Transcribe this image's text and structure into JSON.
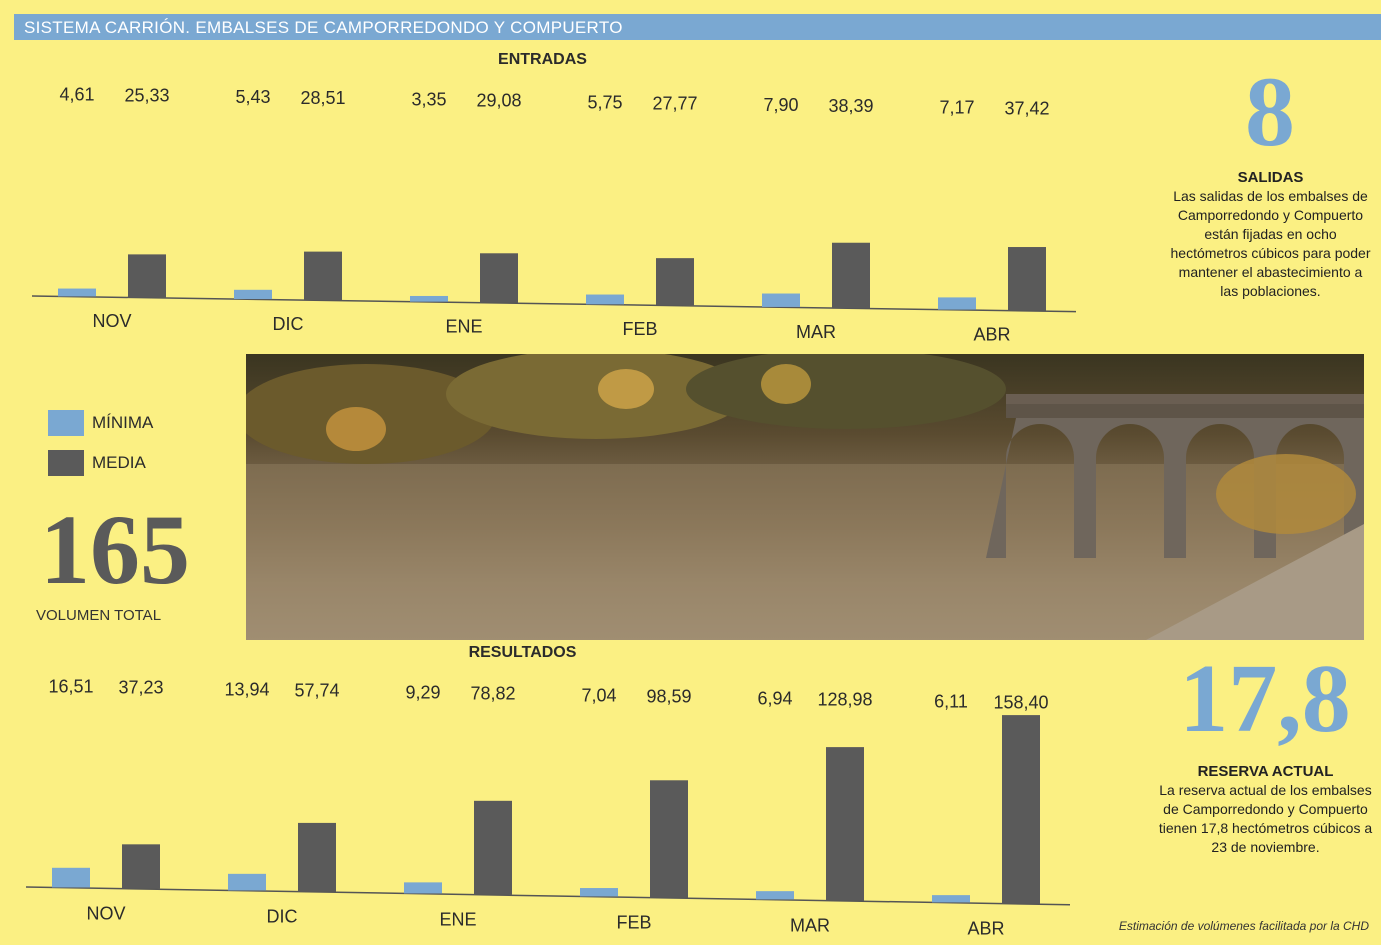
{
  "header": {
    "title": "SISTEMA CARRIÓN. EMBALSES DE CAMPORREDONDO Y COMPUERTO"
  },
  "colors": {
    "minima": "#7aa8d2",
    "media": "#5a5a5a",
    "background": "#fbf083",
    "header": "#7aa8d2"
  },
  "legend": [
    {
      "label": "MÍNIMA",
      "color": "#7aa8d2"
    },
    {
      "label": "MEDIA",
      "color": "#5a5a5a"
    }
  ],
  "total": {
    "number": "165",
    "label": "VOLUMEN TOTAL"
  },
  "salidas": {
    "number": "8",
    "title": "SALIDAS",
    "text": "Las salidas de los embalses de Camporredondo y Compuerto están fijadas en ocho hectómetros cúbicos para poder mantener el abastecimiento a las poblaciones."
  },
  "reserva": {
    "number": "17,8",
    "title": "RESERVA ACTUAL",
    "text": "La reserva actual de los embalses de Camporredondo y Compuerto tienen 17,8 hectómetros cúbicos a 23 de noviembre."
  },
  "source_note": "Estimación de volúmenes facilitada por la CHD",
  "chart_data": [
    {
      "type": "bar",
      "title": "ENTRADAS",
      "categories": [
        "NOV",
        "DIC",
        "ENE",
        "FEB",
        "MAR",
        "ABR"
      ],
      "labels": {
        "minima": [
          "4,61",
          "5,43",
          "3,35",
          "5,75",
          "7,90",
          "7,17"
        ],
        "media": [
          "25,33",
          "28,51",
          "29,08",
          "27,77",
          "38,39",
          "37,42"
        ]
      },
      "series": [
        {
          "name": "MÍNIMA",
          "values": [
            4.61,
            5.43,
            3.35,
            5.75,
            7.9,
            7.17
          ]
        },
        {
          "name": "MEDIA",
          "values": [
            25.33,
            28.51,
            29.08,
            27.77,
            38.39,
            37.42
          ]
        }
      ],
      "ylim": [
        0,
        40
      ]
    },
    {
      "type": "bar",
      "title": "RESULTADOS",
      "categories": [
        "NOV",
        "DIC",
        "ENE",
        "FEB",
        "MAR",
        "ABR"
      ],
      "labels": {
        "minima": [
          "16,51",
          "13,94",
          "9,29",
          "7,04",
          "6,94",
          "6,11"
        ],
        "media": [
          "37,23",
          "57,74",
          "78,82",
          "98,59",
          "128,98",
          "158,40"
        ]
      },
      "series": [
        {
          "name": "MÍNIMA",
          "values": [
            16.51,
            13.94,
            9.29,
            7.04,
            6.94,
            6.11
          ]
        },
        {
          "name": "MEDIA",
          "values": [
            37.23,
            57.74,
            78.82,
            98.59,
            128.98,
            158.4
          ]
        }
      ],
      "ylim": [
        0,
        160
      ]
    }
  ]
}
